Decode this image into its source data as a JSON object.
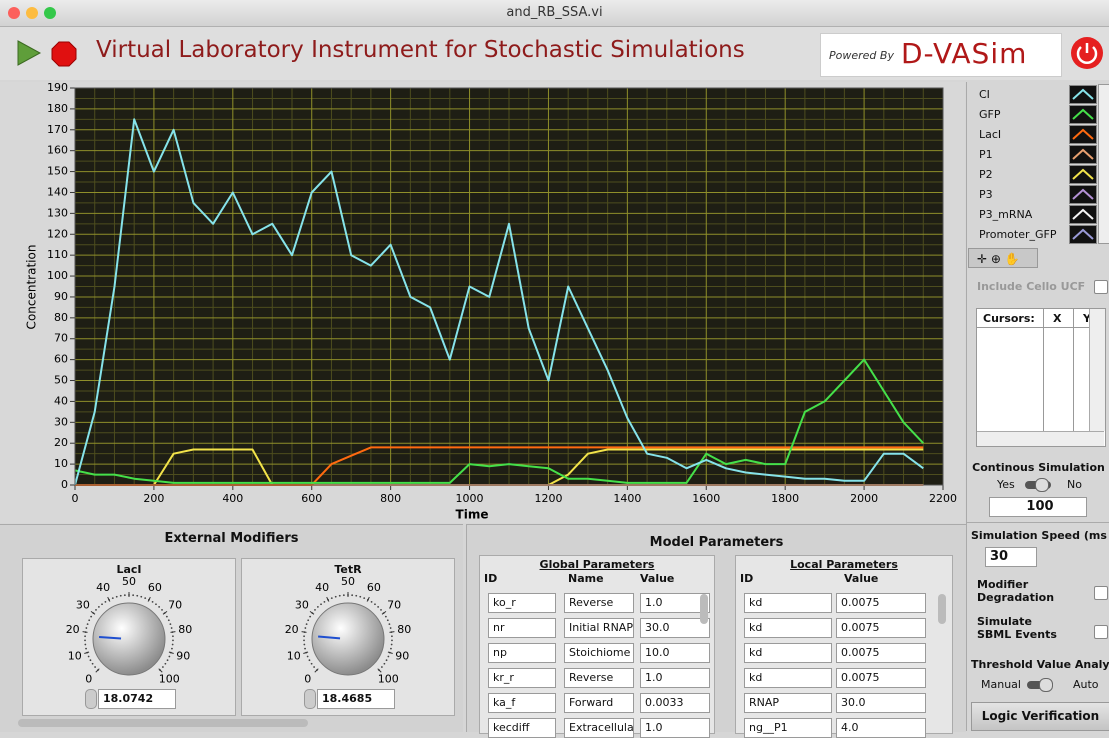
{
  "window": {
    "title": "and_RB_SSA.vi"
  },
  "toolbar": {
    "title": "Virtual Laboratory Instrument for Stochastic Simulations",
    "powered_by": "Powered By",
    "logo": "D-VASim"
  },
  "chart_data": {
    "type": "line",
    "xlabel": "Time",
    "ylabel": "Concentration",
    "xlim": [
      0,
      2200
    ],
    "ylim": [
      0,
      190
    ],
    "xticks": [
      0,
      200,
      400,
      600,
      800,
      1000,
      1200,
      1400,
      1600,
      1800,
      2000,
      2200
    ],
    "yticks": [
      0,
      10,
      20,
      30,
      40,
      50,
      60,
      70,
      80,
      90,
      100,
      110,
      120,
      130,
      140,
      150,
      160,
      170,
      180,
      190
    ],
    "grid": true,
    "x": [
      0,
      50,
      100,
      150,
      200,
      250,
      300,
      350,
      400,
      450,
      500,
      550,
      600,
      650,
      700,
      750,
      800,
      850,
      900,
      950,
      1000,
      1050,
      1100,
      1150,
      1200,
      1250,
      1300,
      1350,
      1400,
      1450,
      1500,
      1550,
      1600,
      1650,
      1700,
      1750,
      1800,
      1850,
      1900,
      1950,
      2000,
      2050,
      2100,
      2150
    ],
    "series": [
      {
        "name": "CI",
        "color": "#86e3ea",
        "values": [
          0,
          35,
          95,
          175,
          150,
          170,
          135,
          125,
          140,
          120,
          125,
          110,
          140,
          150,
          110,
          105,
          115,
          90,
          85,
          60,
          95,
          90,
          125,
          75,
          50,
          95,
          75,
          55,
          32,
          15,
          13,
          8,
          12,
          8,
          6,
          5,
          4,
          3,
          3,
          2,
          2,
          15,
          15,
          8
        ]
      },
      {
        "name": "GFP",
        "color": "#45e04a",
        "values": [
          7,
          5,
          5,
          3,
          2,
          1,
          1,
          1,
          1,
          1,
          1,
          1,
          1,
          1,
          1,
          1,
          1,
          1,
          1,
          1,
          10,
          9,
          10,
          9,
          8,
          3,
          3,
          2,
          1,
          1,
          1,
          1,
          15,
          10,
          12,
          10,
          10,
          35,
          40,
          50,
          60,
          45,
          30,
          20
        ]
      },
      {
        "name": "LacI",
        "color": "#ff6a10",
        "values": [
          0,
          0,
          0,
          0,
          0,
          0,
          0,
          0,
          0,
          0,
          0,
          0,
          0,
          10,
          14,
          18,
          18,
          18,
          18,
          18,
          18,
          18,
          18,
          18,
          18,
          18,
          18,
          18,
          18,
          18,
          18,
          18,
          18,
          18,
          18,
          18,
          18,
          18,
          18,
          18,
          18,
          18,
          18,
          18
        ]
      },
      {
        "name": "P1",
        "color": "#e8a070",
        "values": [
          0,
          0,
          0,
          0,
          0,
          0,
          0,
          0,
          0,
          0,
          0,
          0,
          0,
          0,
          0,
          0,
          0,
          0,
          0,
          0,
          0,
          0,
          0,
          0,
          0,
          0,
          0,
          0,
          0,
          0,
          0,
          0,
          0,
          0,
          0,
          0,
          0,
          0,
          0,
          0,
          0,
          0,
          0,
          0
        ]
      },
      {
        "name": "P2",
        "color": "#f2e34a",
        "values": [
          0,
          0,
          0,
          0,
          0,
          15,
          17,
          17,
          17,
          17,
          0,
          0,
          0,
          0,
          0,
          0,
          0,
          0,
          0,
          0,
          0,
          0,
          0,
          0,
          0,
          5,
          15,
          17,
          17,
          17,
          17,
          17,
          17,
          17,
          17,
          17,
          17,
          17,
          17,
          17,
          17,
          17,
          17,
          17
        ]
      },
      {
        "name": "P3",
        "color": "#b491d6",
        "values": [
          0,
          0,
          0,
          0,
          0,
          0,
          0,
          0,
          0,
          0,
          0,
          0,
          0,
          0,
          0,
          0,
          0,
          0,
          0,
          0,
          0,
          0,
          0,
          0,
          0,
          0,
          0,
          0,
          0,
          0,
          0,
          0,
          0,
          0,
          0,
          0,
          0,
          0,
          0,
          0,
          0,
          0,
          0,
          0
        ]
      },
      {
        "name": "P3_mRNA",
        "color": "#f4f4f4",
        "values": [
          0,
          0,
          0,
          0,
          0,
          0,
          0,
          0,
          0,
          0,
          0,
          0,
          0,
          0,
          0,
          0,
          0,
          0,
          0,
          0,
          0,
          0,
          0,
          0,
          0,
          0,
          0,
          0,
          0,
          0,
          0,
          0,
          0,
          0,
          0,
          0,
          0,
          0,
          0,
          0,
          0,
          0,
          0,
          0
        ]
      },
      {
        "name": "Promoter_GFP",
        "color": "#9a9ad8",
        "values": [
          0,
          0,
          0,
          0,
          0,
          0,
          0,
          0,
          0,
          0,
          0,
          0,
          0,
          0,
          0,
          0,
          0,
          0,
          0,
          0,
          0,
          0,
          0,
          0,
          0,
          0,
          0,
          0,
          0,
          0,
          0,
          0,
          0,
          0,
          0,
          0,
          0,
          0,
          0,
          0,
          0,
          0,
          0,
          0
        ]
      }
    ]
  },
  "side_panel": {
    "include_cello_ucf": "Include Cello UCF",
    "cursors": {
      "headers": [
        "Cursors:",
        "X",
        "Y"
      ]
    },
    "continuous_simulation": {
      "label": "Continous Simulation",
      "yes": "Yes",
      "no": "No",
      "value": "100"
    },
    "simulation_speed": {
      "label": "Simulation Speed (ms",
      "value": "30"
    },
    "modifier_degradation": "Modifier Degradation",
    "simulate_sbml_events": "Simulate SBML Events",
    "threshold": {
      "label": "Threshold Value Analysi",
      "manual": "Manual",
      "auto": "Auto"
    },
    "logic_verification": "Logic Verification"
  },
  "external_modifiers": {
    "title": "External Modifiers",
    "knobs": [
      {
        "label": "LacI",
        "value": 18.0742,
        "scale": [
          0,
          10,
          20,
          30,
          40,
          50,
          60,
          70,
          80,
          90,
          100
        ]
      },
      {
        "label": "TetR",
        "value": 18.4685,
        "scale": [
          0,
          10,
          20,
          30,
          40,
          50,
          60,
          70,
          80,
          90,
          100
        ]
      }
    ]
  },
  "model_parameters": {
    "title": "Model Parameters",
    "global": {
      "title": "Global Parameters",
      "headers": [
        "ID",
        "Name",
        "Value"
      ],
      "rows": [
        [
          "ko_r",
          "Reverse",
          "1.0"
        ],
        [
          "nr",
          "Initial RNAP",
          "30.0"
        ],
        [
          "np",
          "Stoichiome",
          "10.0"
        ],
        [
          "kr_r",
          "Reverse",
          "1.0"
        ],
        [
          "ka_f",
          "Forward",
          "0.0033"
        ],
        [
          "kecdiff",
          "Extracellula",
          "1.0"
        ]
      ]
    },
    "local": {
      "title": "Local Parameters",
      "headers": [
        "ID",
        "Value"
      ],
      "rows": [
        [
          "kd",
          "0.0075"
        ],
        [
          "kd",
          "0.0075"
        ],
        [
          "kd",
          "0.0075"
        ],
        [
          "kd",
          "0.0075"
        ],
        [
          "RNAP",
          "30.0"
        ],
        [
          "ng__P1",
          "4.0"
        ]
      ]
    }
  }
}
